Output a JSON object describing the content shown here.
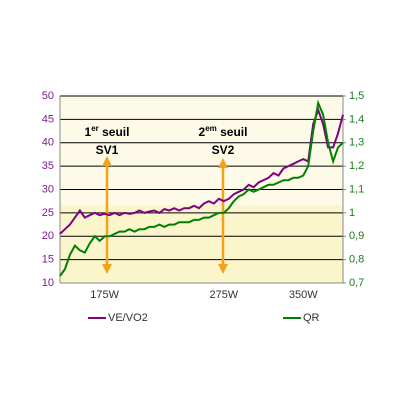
{
  "chart_data": {
    "type": "line",
    "categories": [
      null,
      null,
      null,
      null,
      null,
      null,
      null,
      null,
      null,
      "175W",
      null,
      null,
      null,
      null,
      null,
      null,
      null,
      null,
      null,
      null,
      null,
      null,
      null,
      null,
      null,
      null,
      null,
      null,
      null,
      null,
      null,
      null,
      null,
      "275W",
      null,
      null,
      null,
      null,
      null,
      null,
      null,
      null,
      null,
      null,
      null,
      null,
      null,
      null,
      null,
      "350W",
      null,
      null,
      null,
      null,
      null,
      null,
      null,
      null
    ],
    "series": [
      {
        "name": "VE/VO2",
        "color": "#800080",
        "axis": "y",
        "values": [
          20.5,
          21.5,
          22.5,
          24,
          25.5,
          24,
          24.5,
          25,
          24.5,
          24.8,
          24.5,
          25,
          24.5,
          25,
          24.8,
          25,
          25.5,
          25,
          25.3,
          25.5,
          25,
          25.8,
          25.5,
          26,
          25.5,
          26,
          26,
          26.5,
          26,
          27,
          27.5,
          27,
          28,
          27.5,
          28,
          29,
          29.5,
          30,
          31,
          30.5,
          31.5,
          32,
          32.5,
          33.5,
          33,
          34.5,
          35,
          35.5,
          36,
          36.5,
          36,
          44,
          47,
          44,
          39,
          39,
          42,
          46
        ]
      },
      {
        "name": "QR",
        "color": "#008000",
        "axis": "y2",
        "values": [
          0.73,
          0.76,
          0.82,
          0.86,
          0.84,
          0.83,
          0.87,
          0.9,
          0.88,
          0.9,
          0.9,
          0.91,
          0.92,
          0.92,
          0.93,
          0.92,
          0.93,
          0.93,
          0.94,
          0.94,
          0.95,
          0.94,
          0.95,
          0.95,
          0.96,
          0.96,
          0.96,
          0.97,
          0.97,
          0.98,
          0.98,
          0.99,
          1.0,
          1.0,
          1.02,
          1.05,
          1.07,
          1.08,
          1.1,
          1.09,
          1.1,
          1.11,
          1.12,
          1.12,
          1.13,
          1.14,
          1.14,
          1.15,
          1.15,
          1.16,
          1.2,
          1.35,
          1.47,
          1.42,
          1.3,
          1.22,
          1.28,
          1.3
        ]
      }
    ],
    "ylim": [
      10,
      50
    ],
    "yticks": [
      10,
      15,
      20,
      25,
      30,
      35,
      40,
      45,
      50
    ],
    "y2lim": [
      0.7,
      1.5
    ],
    "y2ticks": [
      {
        "value": 0.7,
        "label": "0,7"
      },
      {
        "value": 0.8,
        "label": "0,8"
      },
      {
        "value": 0.9,
        "label": "0,9"
      },
      1,
      {
        "value": 1.1,
        "label": "1,1"
      },
      {
        "value": 1.2,
        "label": "1,2"
      },
      {
        "value": 1.3,
        "label": "1,3"
      },
      {
        "value": 1.4,
        "label": "1,4"
      },
      {
        "value": 1.5,
        "label": "1,5"
      }
    ],
    "grid": true,
    "annotations": [
      {
        "num": "1",
        "sup": "er",
        "rest": " seuil",
        "label": "SV1"
      },
      {
        "num": "2",
        "sup": "em",
        "rest": " seuil",
        "label": "SV2"
      }
    ]
  }
}
